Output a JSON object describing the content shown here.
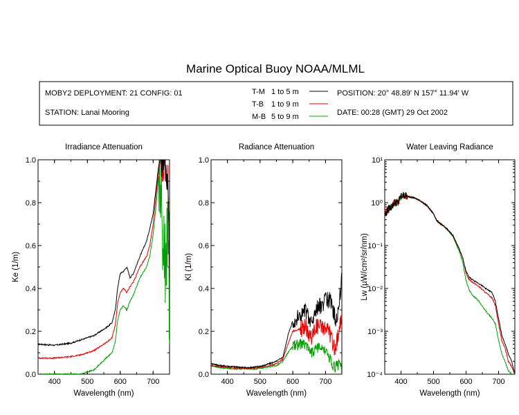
{
  "title": "Marine Optical Buoy NOAA/MLML",
  "info": {
    "deployment": "MOBY2 DEPLOYMENT: 21 CONFIG: 01",
    "station": "STATION: Lanai Mooring",
    "position": "POSITION: 20° 48.89' N   157° 11.94' W",
    "date": "DATE: 00:28 (GMT) 29 Oct 2002"
  },
  "legend": [
    {
      "code": "T-M",
      "range": "1 to 5  m",
      "color": "#000000"
    },
    {
      "code": "T-B",
      "range": "1 to 9  m",
      "color": "#e00000"
    },
    {
      "code": "M-B",
      "range": "5 to 9  m",
      "color": "#00a000"
    }
  ],
  "chart_data": [
    {
      "type": "line",
      "title": "Irradiance Attenuation",
      "xlabel": "Wavelength (nm)",
      "ylabel": "Ke  (1/m)",
      "xlim": [
        350,
        750
      ],
      "ylim": [
        0,
        1.0
      ],
      "xticks": [
        400,
        500,
        600,
        700
      ],
      "yticks": [
        0.0,
        0.2,
        0.4,
        0.6,
        0.8,
        1.0
      ],
      "ytick_labels": [
        "0.0",
        "0.2",
        "0.4",
        "0.6",
        "0.8",
        "1.0"
      ],
      "series": [
        {
          "name": "T-M",
          "color": "#000000",
          "x": [
            350,
            400,
            450,
            480,
            500,
            520,
            540,
            560,
            575,
            585,
            592,
            600,
            610,
            620,
            630,
            640,
            660,
            680,
            690,
            700,
            710,
            715,
            720,
            725,
            730,
            735,
            740,
            745,
            750
          ],
          "y": [
            0.14,
            0.135,
            0.145,
            0.16,
            0.17,
            0.18,
            0.2,
            0.22,
            0.24,
            0.3,
            0.4,
            0.47,
            0.48,
            0.5,
            0.45,
            0.47,
            0.55,
            0.62,
            0.68,
            0.75,
            0.88,
            0.95,
            1.0,
            1.0,
            0.95,
            1.0,
            0.9,
            0.95,
            0.5
          ],
          "noise_from": 725,
          "noise_amp": 0.08
        },
        {
          "name": "T-B",
          "color": "#e00000",
          "x": [
            350,
            400,
            450,
            480,
            500,
            520,
            540,
            560,
            575,
            585,
            592,
            600,
            610,
            620,
            630,
            640,
            660,
            680,
            690,
            700,
            710,
            715,
            720,
            725,
            730,
            735,
            740,
            745,
            750
          ],
          "y": [
            0.075,
            0.075,
            0.082,
            0.09,
            0.1,
            0.11,
            0.13,
            0.15,
            0.17,
            0.23,
            0.33,
            0.38,
            0.4,
            0.38,
            0.41,
            0.43,
            0.5,
            0.55,
            0.6,
            0.7,
            0.85,
            0.92,
            0.98,
            1.0,
            0.95,
            1.0,
            0.9,
            0.95,
            0.5
          ],
          "noise_from": 725,
          "noise_amp": 0.08
        },
        {
          "name": "M-B",
          "color": "#00a000",
          "x": [
            350,
            400,
            450,
            480,
            500,
            520,
            540,
            560,
            575,
            585,
            592,
            600,
            610,
            620,
            630,
            640,
            660,
            680,
            690,
            700,
            710,
            715,
            720,
            725,
            730,
            735,
            740,
            745,
            750
          ],
          "y": [
            0.0,
            0.0,
            0.0,
            0.0,
            0.01,
            0.02,
            0.05,
            0.08,
            0.1,
            0.15,
            0.25,
            0.3,
            0.32,
            0.3,
            0.34,
            0.37,
            0.45,
            0.5,
            0.55,
            0.65,
            0.8,
            0.9,
            0.95,
            0.8,
            0.6,
            0.6,
            0.5,
            0.6,
            0.3
          ],
          "noise_from": 718,
          "noise_amp": 0.25
        }
      ]
    },
    {
      "type": "line",
      "title": "Radiance Attenuation",
      "xlabel": "Wavelength (nm)",
      "ylabel": "Kl  (1/m)",
      "xlim": [
        350,
        750
      ],
      "ylim": [
        0,
        1.0
      ],
      "xticks": [
        400,
        500,
        600,
        700
      ],
      "yticks": [
        0.0,
        0.2,
        0.4,
        0.6,
        0.8,
        1.0
      ],
      "ytick_labels": [
        "0.0",
        "0.2",
        "0.4",
        "0.6",
        "0.8",
        "1.0"
      ],
      "series": [
        {
          "name": "T-M",
          "color": "#000000",
          "x": [
            350,
            380,
            420,
            460,
            490,
            510,
            530,
            550,
            570,
            585,
            600,
            620,
            640,
            650,
            660,
            670,
            690,
            710,
            720,
            730,
            740,
            750
          ],
          "y": [
            0.05,
            0.04,
            0.035,
            0.03,
            0.035,
            0.04,
            0.05,
            0.06,
            0.08,
            0.18,
            0.25,
            0.27,
            0.3,
            0.25,
            0.24,
            0.3,
            0.33,
            0.35,
            0.33,
            0.25,
            0.3,
            0.45
          ],
          "noise_from": 600,
          "noise_amp": 0.04
        },
        {
          "name": "T-B",
          "color": "#e00000",
          "x": [
            350,
            380,
            420,
            460,
            490,
            510,
            530,
            550,
            570,
            585,
            600,
            620,
            640,
            650,
            660,
            670,
            690,
            710,
            720,
            730,
            740,
            750
          ],
          "y": [
            0.04,
            0.035,
            0.03,
            0.028,
            0.03,
            0.035,
            0.04,
            0.05,
            0.07,
            0.14,
            0.2,
            0.21,
            0.22,
            0.18,
            0.17,
            0.22,
            0.22,
            0.2,
            0.15,
            0.12,
            0.2,
            0.25
          ],
          "noise_from": 620,
          "noise_amp": 0.04
        },
        {
          "name": "M-B",
          "color": "#00a000",
          "x": [
            350,
            380,
            420,
            460,
            490,
            510,
            530,
            550,
            570,
            585,
            600,
            620,
            640,
            650,
            660,
            670,
            690,
            710,
            720,
            730,
            740,
            750
          ],
          "y": [
            0.04,
            0.03,
            0.025,
            0.025,
            0.025,
            0.03,
            0.035,
            0.04,
            0.06,
            0.1,
            0.13,
            0.14,
            0.14,
            0.12,
            0.1,
            0.12,
            0.12,
            0.08,
            0.05,
            0.03,
            0.05,
            0.02
          ],
          "noise_from": 600,
          "noise_amp": 0.025
        }
      ]
    },
    {
      "type": "line",
      "title": "Water Leaving Radiance",
      "xlabel": "Wavelength (nm)",
      "ylabel": "Lw  (µW/cm²/sr/nm)",
      "xlim": [
        350,
        750
      ],
      "ylim": [
        0.0001,
        10
      ],
      "yscale": "log",
      "xticks": [
        400,
        500,
        600,
        700
      ],
      "yticks": [
        0.0001,
        0.001,
        0.01,
        0.1,
        1,
        10
      ],
      "ytick_labels": [
        "10⁻⁴",
        "10⁻³",
        "10⁻²",
        "10⁻¹",
        "10⁰",
        "10¹"
      ],
      "series": [
        {
          "name": "T-M",
          "color": "#000000",
          "x": [
            350,
            360,
            370,
            380,
            390,
            400,
            410,
            420,
            440,
            460,
            480,
            500,
            510,
            520,
            540,
            560,
            580,
            590,
            600,
            610,
            620,
            640,
            660,
            680,
            690,
            700,
            710,
            720,
            730,
            740,
            750
          ],
          "y": [
            0.5,
            0.7,
            0.8,
            1.0,
            1.0,
            1.4,
            1.5,
            1.4,
            1.3,
            1.1,
            0.85,
            0.55,
            0.38,
            0.33,
            0.25,
            0.17,
            0.08,
            0.05,
            0.025,
            0.018,
            0.016,
            0.013,
            0.01,
            0.008,
            0.005,
            0.002,
            0.0008,
            0.0005,
            0.0003,
            0.0002,
            0.0001
          ],
          "noise_from": 350,
          "noise_amp": 0
        },
        {
          "name": "T-B",
          "color": "#e00000",
          "x": [
            350,
            360,
            370,
            380,
            390,
            400,
            410,
            420,
            440,
            460,
            480,
            500,
            510,
            520,
            540,
            560,
            580,
            590,
            600,
            610,
            620,
            640,
            660,
            680,
            690,
            700,
            710,
            720,
            730,
            740,
            750
          ],
          "y": [
            0.5,
            0.7,
            0.8,
            1.0,
            1.0,
            1.4,
            1.5,
            1.4,
            1.3,
            1.1,
            0.85,
            0.55,
            0.38,
            0.33,
            0.25,
            0.17,
            0.08,
            0.05,
            0.022,
            0.016,
            0.014,
            0.011,
            0.008,
            0.006,
            0.004,
            0.0015,
            0.0006,
            0.0004,
            0.0002,
            0.00015,
            0.0001
          ],
          "noise_from": 350,
          "noise_amp": 0
        },
        {
          "name": "M-B",
          "color": "#00a000",
          "x": [
            350,
            360,
            370,
            380,
            390,
            400,
            410,
            420,
            440,
            460,
            480,
            500,
            510,
            520,
            540,
            560,
            580,
            590,
            600,
            610,
            620,
            640,
            660,
            680,
            690,
            700,
            710,
            720,
            730,
            740,
            750
          ],
          "y": [
            0.5,
            0.7,
            0.8,
            1.0,
            1.0,
            1.4,
            1.5,
            1.4,
            1.3,
            1.1,
            0.85,
            0.55,
            0.38,
            0.33,
            0.25,
            0.16,
            0.07,
            0.04,
            0.015,
            0.009,
            0.007,
            0.005,
            0.003,
            0.002,
            0.0015,
            0.0006,
            0.0003,
            0.0002,
            0.00012,
            0.0001,
            0.0001
          ],
          "noise_from": 350,
          "noise_amp": 0
        }
      ]
    }
  ]
}
